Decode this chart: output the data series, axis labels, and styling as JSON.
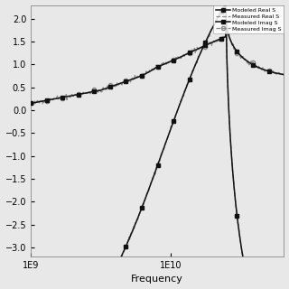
{
  "title": "",
  "xlabel": "Frequency",
  "ylabel": "",
  "xlim_log": [
    1000000000.0,
    65000000000.0
  ],
  "ylim": [
    -3.2,
    2.3
  ],
  "yticks": [
    -3.0,
    -2.5,
    -2.0,
    -1.5,
    -1.0,
    -0.5,
    0.0,
    0.5,
    1.0,
    1.5,
    2.0
  ],
  "legend_labels": [
    "Modeled Real S",
    "Measured Real S",
    "Modeled Imag S",
    "Measured Imag S"
  ],
  "freq_start": 1000000000.0,
  "freq_end": 65000000000.0,
  "n_points": 400,
  "background_color": "#e8e8e8",
  "plot_bg_color": "#e8e8e8",
  "line_color_dark": "#111111",
  "line_color_gray": "#888888",
  "marker_size": 3,
  "marker_every": 25
}
